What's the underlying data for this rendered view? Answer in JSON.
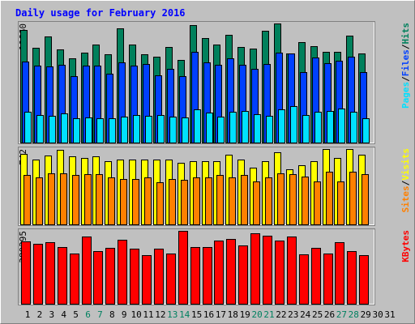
{
  "chart_data": [
    {
      "type": "bar",
      "title": "Daily usage for February 2016",
      "ylim": [
        0,
        10660
      ],
      "yticks": [
        10660
      ],
      "legend_separator": "/",
      "series": [
        {
          "name": "Hits",
          "color": "#00805c",
          "values": [
            10080,
            8480,
            9500,
            8340,
            7540,
            8050,
            8770,
            7900,
            10220,
            8770,
            7900,
            7690,
            8560,
            7400,
            10510,
            9350,
            8770,
            9640,
            8560,
            8410,
            10010,
            10660,
            7980,
            8990,
            8630,
            8120,
            8120,
            9570,
            7980,
            null,
            null
          ]
        },
        {
          "name": "Files",
          "color": "#0040ff",
          "values": [
            7250,
            6890,
            6820,
            6960,
            5950,
            6890,
            6890,
            6160,
            7180,
            6890,
            7030,
            6020,
            6600,
            5950,
            8120,
            7180,
            6960,
            7540,
            6960,
            6600,
            7030,
            8050,
            7980,
            6310,
            7610,
            7110,
            7320,
            7690,
            6310,
            null,
            null
          ]
        },
        {
          "name": "Pages",
          "color": "#00e0ff",
          "values": [
            2830,
            2540,
            2470,
            2680,
            2250,
            2320,
            2250,
            2250,
            2390,
            2540,
            2470,
            2540,
            2390,
            2320,
            3050,
            2750,
            2390,
            2830,
            2900,
            2610,
            2470,
            3050,
            3330,
            2540,
            2830,
            2900,
            3120,
            2830,
            2250,
            null,
            null
          ]
        }
      ]
    },
    {
      "type": "bar",
      "ylim": [
        0,
        742
      ],
      "yticks": [
        742
      ],
      "legend_separator": "/",
      "series": [
        {
          "name": "Visits",
          "color": "#ffff00",
          "values": [
            694,
            638,
            678,
            734,
            670,
            654,
            670,
            622,
            638,
            638,
            638,
            638,
            638,
            606,
            622,
            622,
            622,
            686,
            638,
            558,
            622,
            710,
            542,
            582,
            622,
            742,
            654,
            742,
            686,
            null,
            null
          ]
        },
        {
          "name": "Sites",
          "color": "#ff8000",
          "values": [
            487,
            463,
            503,
            503,
            487,
            495,
            495,
            463,
            447,
            447,
            463,
            415,
            447,
            439,
            463,
            463,
            487,
            463,
            487,
            423,
            463,
            503,
            495,
            471,
            423,
            519,
            423,
            519,
            495,
            null,
            null
          ]
        }
      ]
    },
    {
      "type": "bar",
      "ylim": [
        0,
        380295
      ],
      "yticks": [
        380295
      ],
      "categories": [
        "1",
        "2",
        "3",
        "4",
        "5",
        "6",
        "7",
        "8",
        "9",
        "10",
        "11",
        "12",
        "13",
        "14",
        "15",
        "16",
        "17",
        "18",
        "19",
        "20",
        "21",
        "22",
        "23",
        "24",
        "25",
        "26",
        "27",
        "28",
        "29",
        "30",
        "31"
      ],
      "highlighted_categories": [
        5,
        6,
        12,
        13,
        19,
        20,
        26,
        27
      ],
      "highlight_color": "#008060",
      "series": [
        {
          "name": "KBytes",
          "color": "#ff0000",
          "values": [
            326000,
            313400,
            321800,
            296700,
            263300,
            351000,
            275800,
            292500,
            334300,
            288400,
            254900,
            288400,
            263300,
            380295,
            296700,
            296700,
            330100,
            338500,
            305100,
            367800,
            355200,
            330100,
            351000,
            259100,
            292500,
            263300,
            321800,
            275800,
            255000,
            null,
            null
          ]
        }
      ]
    }
  ]
}
